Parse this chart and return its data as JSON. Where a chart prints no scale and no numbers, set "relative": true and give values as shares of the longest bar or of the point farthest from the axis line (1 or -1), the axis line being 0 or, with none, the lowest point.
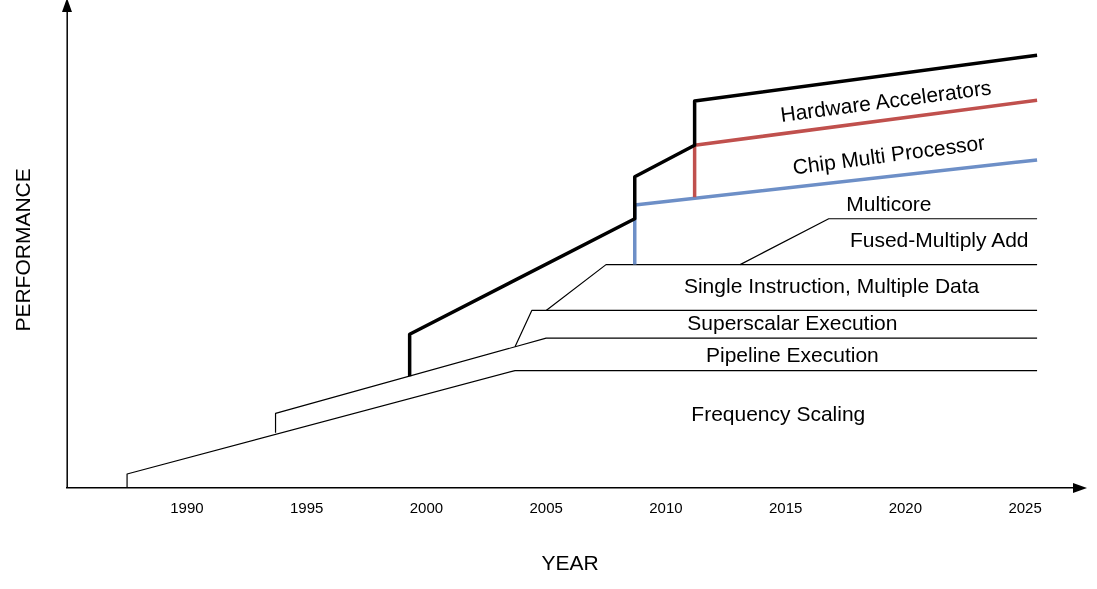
{
  "chart_data": {
    "type": "line",
    "relative": true,
    "xlabel": "YEAR",
    "ylabel": "PERFORMANCE",
    "xlim": [
      1985,
      2027
    ],
    "xticks": [
      1990,
      1995,
      2000,
      2005,
      2010,
      2015,
      2020,
      2025
    ],
    "grid": false,
    "legend": false,
    "marker": "none",
    "line_style": "solid",
    "series": [
      {
        "color": "#000000",
        "x": [
          1999.3,
          1999.3,
          2008.7,
          2008.7,
          2011.2,
          2011.2,
          2025.5
        ],
        "values": [
          0.258,
          0.355,
          0.622,
          0.719,
          0.792,
          0.894,
          1
        ]
      },
      {
        "color": "#c0504d",
        "x": [
          2011.2,
          2011.2,
          2025.5
        ],
        "values": [
          0.672,
          0.792,
          0.896
        ]
      },
      {
        "color": "#6d8fc7",
        "x": [
          2008.7,
          2008.7,
          2025.5
        ],
        "values": [
          0.516,
          0.654,
          0.758
        ]
      },
      {
        "color": "#000000",
        "x": [
          1987.5,
          1987.5,
          2003.7,
          2025.5
        ],
        "values": [
          0,
          0.032,
          0.271,
          0.271
        ]
      },
      {
        "color": "#000000",
        "x": [
          1993.7,
          1993.7,
          2005,
          2025.5
        ],
        "values": [
          0.127,
          0.172,
          0.346,
          0.346
        ]
      },
      {
        "color": "#000000",
        "x": [
          2003.7,
          2004.4,
          2025.5
        ],
        "values": [
          0.326,
          0.41,
          0.41
        ]
      },
      {
        "color": "#000000",
        "x": [
          2005,
          2007.5,
          2025.5
        ],
        "values": [
          0.41,
          0.516,
          0.516
        ]
      },
      {
        "color": "#000000",
        "x": [
          2013.1,
          2016.8,
          2025.5
        ],
        "values": [
          0.516,
          0.622,
          0.622
        ]
      }
    ],
    "annotations": [
      "Hardware Accelerators",
      "Chip Multi Processor",
      "Multicore",
      "Fused-Multiply Add",
      "Single Instruction, Multiple Data",
      "Superscalar Execution",
      "Pipeline Execution",
      "Frequency Scaling"
    ]
  }
}
